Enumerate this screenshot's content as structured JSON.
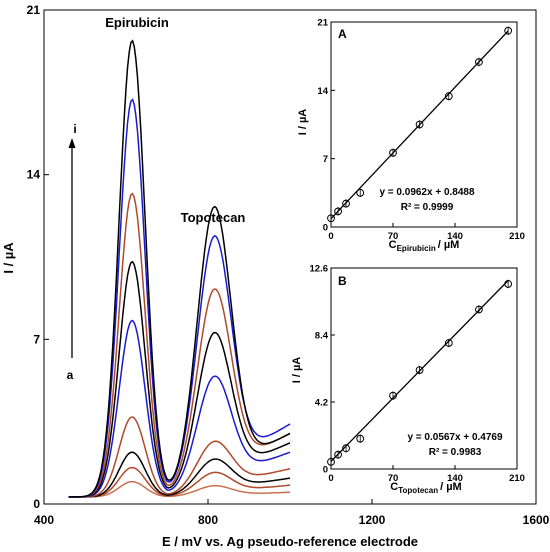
{
  "chart_data": [
    {
      "type": "line",
      "xlabel": "E / mV vs. Ag pseudo-reference electrode",
      "ylabel": "I / µA",
      "xlim": [
        400,
        1600
      ],
      "ylim": [
        0,
        21
      ],
      "x_ticks": [
        400,
        800,
        1200,
        1600
      ],
      "y_ticks": [
        0,
        7,
        14,
        21
      ],
      "annotations": {
        "peak1": "Epirubicin",
        "peak2": "Topotecan",
        "arrow_top": "i",
        "arrow_bottom": "a"
      },
      "curve_x_range": [
        460,
        1000
      ],
      "peak_positions_mV": [
        615,
        815
      ],
      "series": [
        {
          "color": "#c87050",
          "baseline": 0.3,
          "epirubicin_peak": 0.95,
          "topotecan_peak": 0.7,
          "end_value": 0.5
        },
        {
          "color": "#b04a2a",
          "baseline": 0.3,
          "epirubicin_peak": 1.55,
          "topotecan_peak": 1.15,
          "end_value": 0.8
        },
        {
          "color": "#000000",
          "baseline": 0.3,
          "epirubicin_peak": 2.2,
          "topotecan_peak": 1.6,
          "end_value": 1.1
        },
        {
          "color": "#b04a2a",
          "baseline": 0.3,
          "epirubicin_peak": 3.7,
          "topotecan_peak": 2.2,
          "end_value": 1.5
        },
        {
          "color": "#1a1ad0",
          "baseline": 0.3,
          "epirubicin_peak": 7.8,
          "topotecan_peak": 4.7,
          "end_value": 2.2
        },
        {
          "color": "#000000",
          "baseline": 0.3,
          "epirubicin_peak": 10.3,
          "topotecan_peak": 6.4,
          "end_value": 2.6
        },
        {
          "color": "#b04a2a",
          "baseline": 0.3,
          "epirubicin_peak": 13.2,
          "topotecan_peak": 8.1,
          "end_value": 3.0
        },
        {
          "color": "#1a1ad0",
          "baseline": 0.3,
          "epirubicin_peak": 17.2,
          "topotecan_peak": 10.2,
          "end_value": 3.4
        },
        {
          "color": "#000000",
          "baseline": 0.3,
          "epirubicin_peak": 19.7,
          "topotecan_peak": 11.6,
          "end_value": 3.0
        }
      ]
    },
    {
      "type": "scatter",
      "panel_label": "A",
      "xlabel_main": "C",
      "xlabel_sub": "Epirubicin",
      "xlabel_unit": "/ µM",
      "ylabel": "I / µA",
      "xlim": [
        0,
        210
      ],
      "ylim": [
        0,
        21
      ],
      "x_ticks": [
        0,
        70,
        140,
        210
      ],
      "y_ticks": [
        0,
        7,
        14,
        21
      ],
      "x": [
        0,
        8,
        17,
        33,
        70,
        100,
        133,
        167,
        200
      ],
      "y": [
        0.9,
        1.6,
        2.4,
        3.5,
        7.6,
        10.5,
        13.4,
        16.9,
        20.1
      ],
      "fit": {
        "slope": 0.0962,
        "intercept": 0.8488
      },
      "equation": "y = 0.0962x + 0.8488",
      "r2": "R² = 0.9999"
    },
    {
      "type": "scatter",
      "panel_label": "B",
      "xlabel_main": "C",
      "xlabel_sub": "Topotecan",
      "xlabel_unit": "/ µM",
      "ylabel": "I / µA",
      "xlim": [
        0,
        210
      ],
      "ylim": [
        0,
        12.6
      ],
      "x_ticks": [
        0,
        70,
        140,
        210
      ],
      "y_ticks": [
        "0",
        "4.2",
        "8.4",
        "12.6"
      ],
      "x": [
        0,
        8,
        17,
        33,
        70,
        100,
        133,
        167,
        200
      ],
      "y": [
        0.45,
        0.9,
        1.3,
        1.9,
        4.6,
        6.2,
        7.9,
        10.0,
        11.6
      ],
      "fit": {
        "slope": 0.0567,
        "intercept": 0.4769
      },
      "equation": "y = 0.0567x + 0.4769",
      "r2": "R² = 0.9983"
    }
  ]
}
